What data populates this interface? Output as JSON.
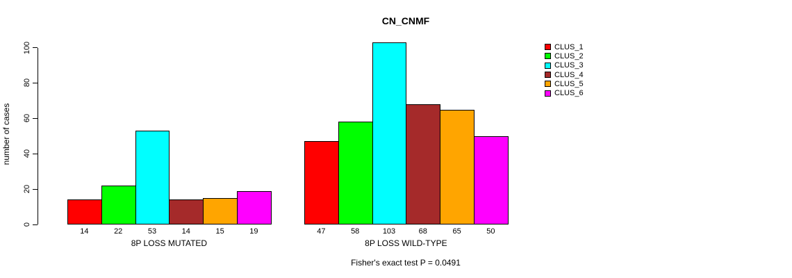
{
  "title": "CN_CNMF",
  "chart_data": {
    "type": "bar",
    "title": "CN_CNMF",
    "xlabel": "",
    "ylabel": "number of cases",
    "yticks": [
      0,
      20,
      40,
      60,
      80,
      100
    ],
    "ylim": [
      0,
      103
    ],
    "grid": false,
    "legend_position": "right",
    "bar_border_color": "#000000",
    "series": [
      {
        "name": "CLUS_1",
        "color": "#FF0000"
      },
      {
        "name": "CLUS_2",
        "color": "#00FF00"
      },
      {
        "name": "CLUS_3",
        "color": "#00FFFF"
      },
      {
        "name": "CLUS_4",
        "color": "#A52A2A"
      },
      {
        "name": "CLUS_5",
        "color": "#FFA500"
      },
      {
        "name": "CLUS_6",
        "color": "#FF00FF"
      }
    ],
    "groups": [
      {
        "label": "8P LOSS MUTATED",
        "values": [
          14,
          22,
          53,
          14,
          15,
          19
        ]
      },
      {
        "label": "8P LOSS WILD-TYPE",
        "values": [
          47,
          58,
          103,
          68,
          65,
          50
        ]
      }
    ],
    "annotation": "Fisher's exact test P = 0.0491"
  }
}
